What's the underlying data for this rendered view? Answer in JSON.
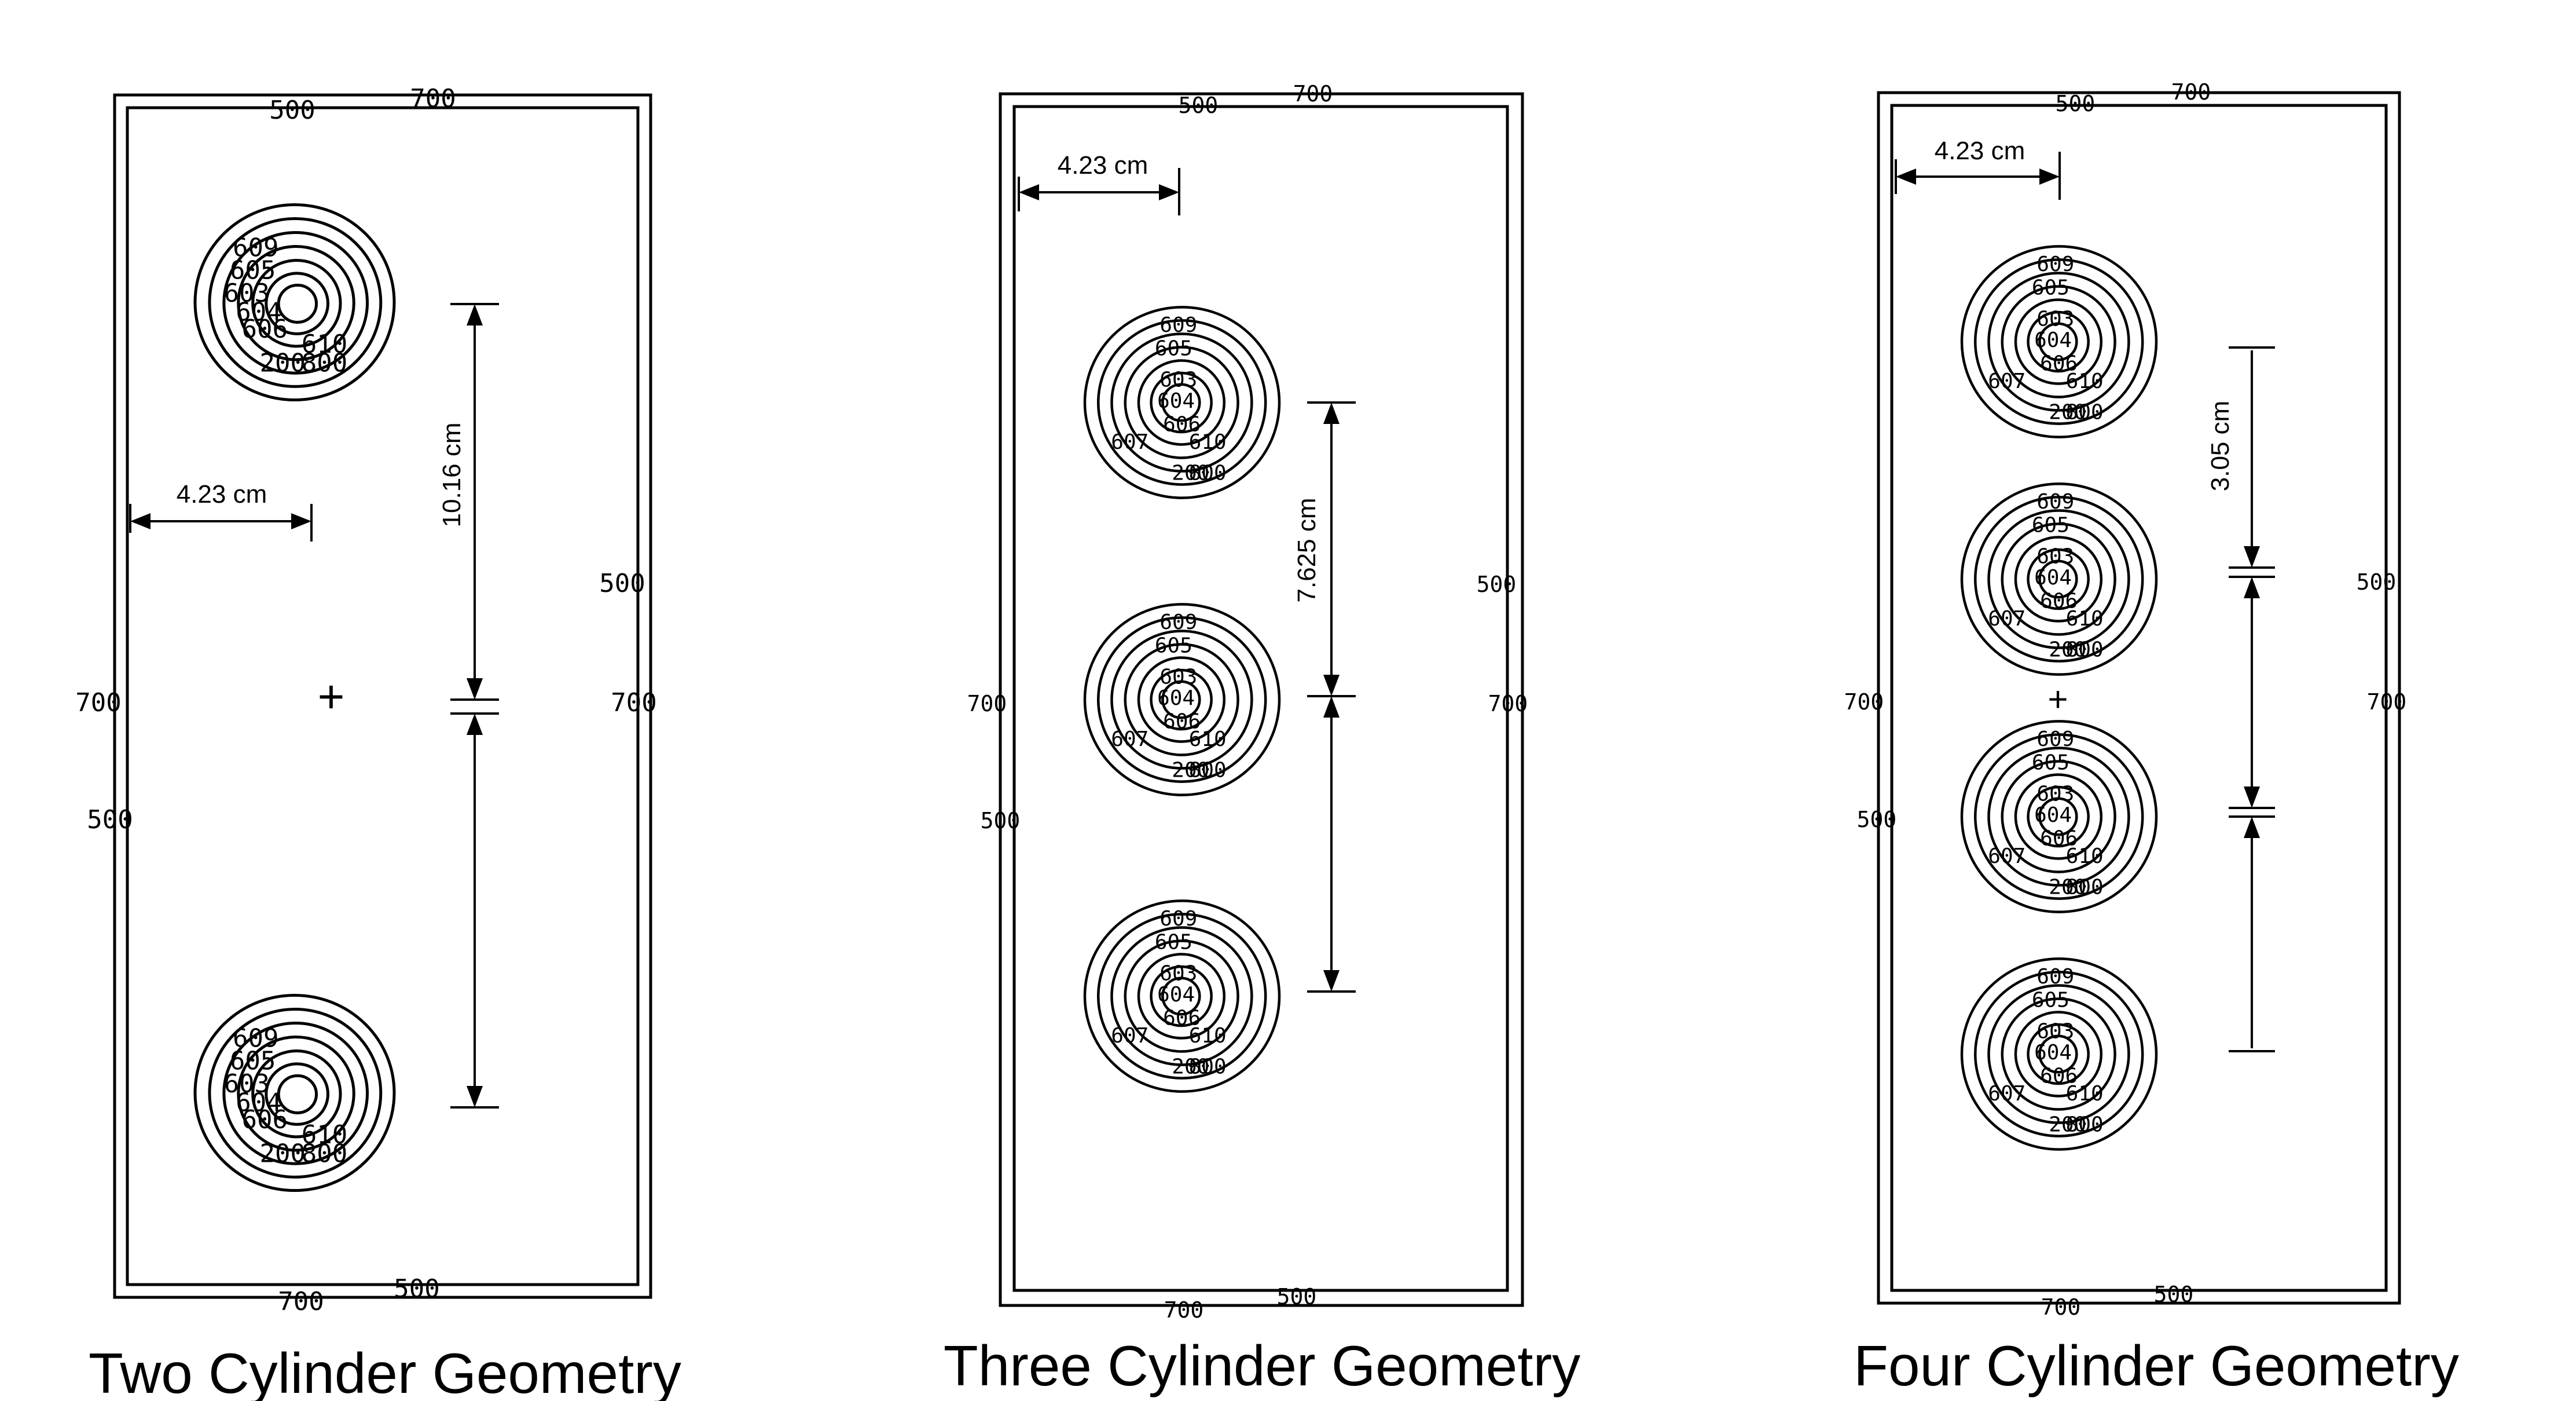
{
  "panels": [
    {
      "id": "two",
      "caption": "Two Cylinder Geometry",
      "width_label": "4.23 cm",
      "spacing_label": "10.16 cm",
      "cylinder_count": 2,
      "outer_labels": {
        "top_500": "500",
        "top_700": "700",
        "bottom_700": "700",
        "bottom_500": "500",
        "left_700": "700",
        "left_500": "500",
        "right_500": "500",
        "right_700": "700"
      },
      "ring_labels": [
        "609",
        "605",
        "603",
        "604",
        "606",
        "607",
        "610",
        "200",
        "800"
      ]
    },
    {
      "id": "three",
      "caption": "Three Cylinder Geometry",
      "width_label": "4.23 cm",
      "spacing_label": "7.625 cm",
      "cylinder_count": 3,
      "outer_labels": {
        "top_500": "500",
        "top_700": "700",
        "bottom_700": "700",
        "bottom_500": "500",
        "left_700": "700",
        "left_500": "500",
        "right_500": "500",
        "right_700": "700"
      },
      "ring_labels": [
        "609",
        "605",
        "603",
        "604",
        "606",
        "607",
        "610",
        "200",
        "800"
      ]
    },
    {
      "id": "four",
      "caption": "Four Cylinder Geometry",
      "width_label": "4.23 cm",
      "spacing_label": "3.05 cm",
      "cylinder_count": 4,
      "outer_labels": {
        "top_500": "500",
        "top_700": "700",
        "bottom_700": "700",
        "bottom_500": "500",
        "left_700": "700",
        "left_500": "500",
        "right_500": "500",
        "right_700": "700"
      },
      "ring_labels": [
        "609",
        "605",
        "603",
        "604",
        "606",
        "607",
        "610",
        "200",
        "800"
      ]
    }
  ],
  "center_mark": "+"
}
